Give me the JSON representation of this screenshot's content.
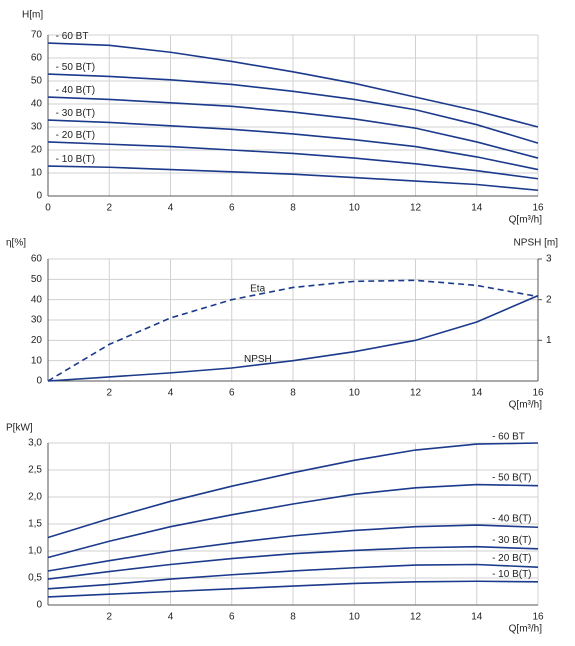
{
  "chart_data": [
    {
      "type": "line",
      "ylabel": "H[m]",
      "xlabel": "Q[m³/h]",
      "color": "#1c3a8c",
      "grid": true,
      "x": [
        0,
        2,
        4,
        6,
        8,
        10,
        12,
        14,
        16
      ],
      "xlim": [
        0,
        16
      ],
      "xticks": [
        0,
        2,
        4,
        6,
        8,
        10,
        12,
        14,
        16
      ],
      "ylim": [
        0,
        70
      ],
      "yticks": [
        0,
        10,
        20,
        30,
        40,
        50,
        60,
        70
      ],
      "series": [
        {
          "name": "- 60 BT",
          "values": [
            66.5,
            65.5,
            62.5,
            58.5,
            54,
            49,
            43,
            37,
            30
          ]
        },
        {
          "name": "- 50 B(T)",
          "values": [
            53,
            52,
            50.5,
            48.5,
            45.5,
            42,
            37.5,
            31,
            23
          ]
        },
        {
          "name": "- 40 B(T)",
          "values": [
            43,
            42,
            40.5,
            39,
            36.5,
            33.5,
            29.5,
            23.5,
            16.5
          ]
        },
        {
          "name": "- 30 B(T)",
          "values": [
            33,
            32,
            30.5,
            29,
            27,
            24.5,
            21.5,
            17,
            11.5
          ]
        },
        {
          "name": "- 20 B(T)",
          "values": [
            23.5,
            22.5,
            21.5,
            20,
            18.5,
            16.5,
            14,
            11,
            7.5
          ]
        },
        {
          "name": "- 10 B(T)",
          "values": [
            13,
            12.5,
            11.5,
            10.5,
            9.5,
            8,
            6.5,
            5,
            2.5
          ]
        }
      ]
    },
    {
      "type": "line",
      "ylabel": "η[%]",
      "y2label": "NPSH [m]",
      "xlabel": "Q[m³/h]",
      "color": "#1c3a8c",
      "grid": true,
      "x": [
        0,
        2,
        4,
        6,
        8,
        10,
        12,
        14,
        16
      ],
      "xlim": [
        0,
        16
      ],
      "xticks": [
        2,
        4,
        6,
        8,
        10,
        12,
        14,
        16
      ],
      "ylim": [
        0,
        60
      ],
      "yticks": [
        0,
        10,
        20,
        30,
        40,
        50,
        60
      ],
      "y2lim": [
        0,
        3
      ],
      "y2ticks": [
        1,
        2,
        3
      ],
      "series": [
        {
          "name": "Eta",
          "line_style": "dashed",
          "values": [
            0,
            18,
            31,
            40,
            46,
            49,
            49.5,
            47,
            41.5
          ]
        },
        {
          "name": "NPSH",
          "axis": "y2",
          "line_style": "solid",
          "values": [
            0,
            0.1,
            0.2,
            0.32,
            0.5,
            0.72,
            1.0,
            1.45,
            2.1
          ]
        }
      ]
    },
    {
      "type": "line",
      "ylabel": "P[kW]",
      "xlabel": "Q[m³/h]",
      "color": "#1c3a8c",
      "grid": true,
      "x": [
        0,
        2,
        4,
        6,
        8,
        10,
        12,
        14,
        16
      ],
      "xlim": [
        0,
        16
      ],
      "xticks": [
        2,
        4,
        6,
        8,
        10,
        12,
        14,
        16
      ],
      "ylim": [
        0,
        3
      ],
      "yticks": [
        0,
        {
          "value": 0.5,
          "label": "0,5"
        },
        {
          "value": 1,
          "label": "1,0"
        },
        {
          "value": 1.5,
          "label": "1,5"
        },
        {
          "value": 2,
          "label": "2,0"
        },
        {
          "value": 2.5,
          "label": "2,5"
        },
        {
          "value": 3,
          "label": "3,0"
        }
      ],
      "series": [
        {
          "name": "- 60 BT",
          "values": [
            1.25,
            1.6,
            1.92,
            2.2,
            2.45,
            2.68,
            2.87,
            2.98,
            3.0
          ]
        },
        {
          "name": "- 50 B(T)",
          "values": [
            0.88,
            1.18,
            1.45,
            1.67,
            1.87,
            2.05,
            2.17,
            2.23,
            2.21
          ]
        },
        {
          "name": "- 40 B(T)",
          "values": [
            0.63,
            0.82,
            1.0,
            1.15,
            1.28,
            1.38,
            1.45,
            1.48,
            1.44
          ]
        },
        {
          "name": "- 30 B(T)",
          "values": [
            0.48,
            0.62,
            0.75,
            0.86,
            0.95,
            1.01,
            1.06,
            1.08,
            1.04
          ]
        },
        {
          "name": "- 20 B(T)",
          "values": [
            0.3,
            0.38,
            0.48,
            0.56,
            0.63,
            0.69,
            0.74,
            0.75,
            0.7
          ]
        },
        {
          "name": "- 10 B(T)",
          "values": [
            0.15,
            0.2,
            0.25,
            0.3,
            0.35,
            0.4,
            0.43,
            0.44,
            0.43
          ]
        }
      ]
    }
  ]
}
